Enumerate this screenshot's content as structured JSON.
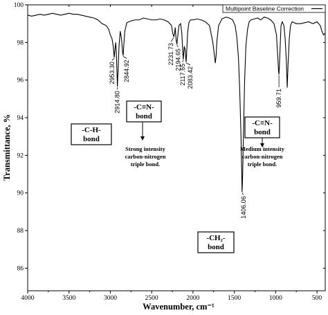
{
  "chart_data": {
    "type": "line",
    "title": "",
    "xlabel": "Wavenumber, cm⁻¹",
    "ylabel": "Transmittance, %",
    "xlim": [
      4000,
      400
    ],
    "ylim": [
      84.8,
      100
    ],
    "xticks": [
      4000,
      3500,
      3000,
      2500,
      2000,
      1500,
      1000,
      500
    ],
    "yticks": [
      86,
      88,
      90,
      92,
      94,
      96,
      98,
      100
    ],
    "legend": {
      "label": "Multipoint Baseline Correction",
      "placement": "top-right"
    },
    "series": [
      {
        "name": "Multipoint Baseline Correction",
        "x": [
          4000,
          3950,
          3900,
          3850,
          3800,
          3750,
          3700,
          3650,
          3600,
          3550,
          3500,
          3450,
          3400,
          3350,
          3300,
          3250,
          3200,
          3150,
          3100,
          3050,
          3020,
          3000,
          2980,
          2965,
          2953,
          2945,
          2935,
          2925,
          2915,
          2905,
          2895,
          2880,
          2865,
          2852,
          2845,
          2838,
          2825,
          2800,
          2750,
          2700,
          2650,
          2600,
          2550,
          2500,
          2450,
          2400,
          2350,
          2300,
          2260,
          2245,
          2232,
          2222,
          2215,
          2205,
          2195,
          2185,
          2170,
          2150,
          2135,
          2125,
          2118,
          2105,
          2095,
          2083,
          2075,
          2065,
          2050,
          2030,
          2000,
          1950,
          1900,
          1850,
          1800,
          1760,
          1740,
          1730,
          1720,
          1710,
          1690,
          1650,
          1600,
          1560,
          1520,
          1490,
          1470,
          1450,
          1435,
          1420,
          1412,
          1406,
          1400,
          1390,
          1375,
          1360,
          1340,
          1320,
          1300,
          1260,
          1220,
          1180,
          1140,
          1100,
          1060,
          1020,
          990,
          975,
          965,
          960,
          955,
          945,
          935,
          920,
          900,
          885,
          870,
          860,
          850,
          835,
          820,
          800,
          750,
          700,
          650,
          600,
          550,
          500,
          460,
          440,
          420,
          400
        ],
        "y": [
          99.45,
          99.4,
          99.45,
          99.5,
          99.45,
          99.5,
          99.55,
          99.5,
          99.45,
          99.5,
          99.55,
          99.5,
          99.5,
          99.45,
          99.4,
          99.35,
          99.3,
          99.2,
          99.0,
          98.9,
          98.7,
          98.4,
          98.2,
          97.8,
          97.2,
          97.6,
          98.0,
          97.2,
          95.65,
          96.6,
          97.8,
          98.6,
          98.2,
          97.5,
          97.3,
          97.8,
          98.6,
          99.05,
          99.15,
          99.2,
          99.2,
          99.3,
          99.25,
          99.2,
          99.2,
          99.25,
          99.2,
          99.1,
          98.9,
          98.5,
          98.3,
          98.5,
          98.8,
          98.2,
          97.9,
          98.3,
          98.9,
          99.0,
          98.5,
          97.6,
          97.1,
          97.8,
          97.6,
          96.95,
          97.6,
          98.5,
          99.05,
          99.2,
          99.2,
          99.25,
          99.2,
          99.1,
          98.9,
          98.0,
          97.3,
          96.9,
          97.3,
          98.1,
          98.9,
          99.25,
          99.35,
          99.3,
          99.2,
          98.9,
          98.3,
          97.2,
          95.5,
          93.2,
          91.5,
          90.05,
          90.8,
          93.0,
          96.0,
          97.8,
          98.7,
          99.1,
          99.2,
          99.25,
          99.3,
          99.2,
          99.35,
          99.3,
          99.2,
          99.0,
          98.4,
          97.3,
          96.5,
          96.3,
          96.7,
          97.8,
          98.9,
          99.1,
          98.9,
          98.2,
          97.0,
          95.6,
          96.8,
          98.2,
          98.9,
          99.1,
          99.0,
          99.0,
          99.05,
          99.1,
          99.0,
          99.1,
          98.9,
          98.6,
          98.4,
          98.5
        ],
        "color": "#000000"
      }
    ],
    "peak_labels": [
      {
        "x": 2953,
        "y": 97.2,
        "text": "2953.30"
      },
      {
        "x": 2915,
        "y": 95.65,
        "text": "2914.80"
      },
      {
        "x": 2845,
        "y": 97.3,
        "text": "2844.92"
      },
      {
        "x": 2232,
        "y": 98.3,
        "text": "2231.73"
      },
      {
        "x": 2195,
        "y": 97.9,
        "text": "2194.65"
      },
      {
        "x": 2118,
        "y": 97.1,
        "text": "2117.65"
      },
      {
        "x": 2083,
        "y": 96.95,
        "text": "2083.42"
      },
      {
        "x": 1406,
        "y": 90.05,
        "text": "1406.06"
      },
      {
        "x": 960,
        "y": 96.3,
        "text": "959.71"
      }
    ],
    "annotations": [
      {
        "id": "ch",
        "lines": [
          "-C-H-",
          "bond"
        ]
      },
      {
        "id": "cn1",
        "lines": [
          "-C≡N-",
          "bond"
        ],
        "note": [
          "Strong intensity",
          "carbon-nitrogen",
          "triple bond."
        ]
      },
      {
        "id": "cn2",
        "lines": [
          "-C≡N-",
          "bond"
        ],
        "note": [
          "Medium intensity",
          "carbon-nitrogen",
          "triple bond."
        ]
      },
      {
        "id": "ch2",
        "lines": [
          "-CH₂-",
          "bond"
        ]
      }
    ]
  }
}
